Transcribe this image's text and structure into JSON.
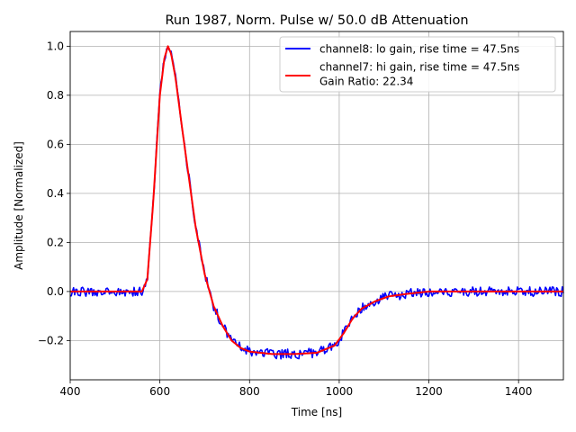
{
  "chart_data": {
    "type": "line",
    "title": "Run 1987, Norm. Pulse w/ 50.0 dB Attenuation",
    "xlabel": "Time [ns]",
    "ylabel": "Amplitude [Normalized]",
    "xlim": [
      400,
      1500
    ],
    "ylim": [
      -0.36,
      1.06
    ],
    "xticks": [
      400,
      600,
      800,
      1000,
      1200,
      1400
    ],
    "yticks": [
      -0.2,
      0.0,
      0.2,
      0.4,
      0.6,
      0.8,
      1.0
    ],
    "xtick_labels": [
      "400",
      "600",
      "800",
      "1000",
      "1200",
      "1400"
    ],
    "ytick_labels": [
      "−0.2",
      "0.0",
      "0.2",
      "0.4",
      "0.6",
      "0.8",
      "1.0"
    ],
    "grid": true,
    "legend_position": "top-right",
    "legend_extra_text": "Gain Ratio: 22.34",
    "series": [
      {
        "name": "channel8: lo gain, rise time = 47.5ns",
        "color": "#0000ff",
        "noise_amplitude": 0.02,
        "x": [
          400,
          560,
          572,
          585,
          600,
          610,
          618,
          625,
          635,
          650,
          665,
          680,
          700,
          720,
          740,
          760,
          780,
          800,
          850,
          900,
          950,
          990,
          1010,
          1030,
          1050,
          1080,
          1110,
          1150,
          1200,
          1300,
          1400,
          1500
        ],
        "y": [
          0.0,
          0.0,
          0.05,
          0.36,
          0.8,
          0.95,
          1.0,
          0.97,
          0.87,
          0.66,
          0.46,
          0.26,
          0.07,
          -0.06,
          -0.14,
          -0.2,
          -0.23,
          -0.245,
          -0.255,
          -0.255,
          -0.25,
          -0.22,
          -0.17,
          -0.11,
          -0.07,
          -0.04,
          -0.02,
          -0.01,
          0.0,
          0.0,
          0.0,
          0.0
        ]
      },
      {
        "name": "channel7: hi gain, rise time = 47.5ns",
        "color": "#ff0000",
        "noise_amplitude": 0.0,
        "x": [
          400,
          560,
          572,
          585,
          600,
          610,
          618,
          625,
          635,
          650,
          665,
          680,
          700,
          720,
          740,
          760,
          780,
          800,
          850,
          900,
          950,
          990,
          1010,
          1030,
          1050,
          1080,
          1110,
          1150,
          1200,
          1300,
          1400,
          1500
        ],
        "y": [
          0.0,
          0.0,
          0.05,
          0.36,
          0.8,
          0.95,
          1.0,
          0.97,
          0.87,
          0.66,
          0.46,
          0.26,
          0.07,
          -0.06,
          -0.14,
          -0.2,
          -0.23,
          -0.245,
          -0.255,
          -0.255,
          -0.25,
          -0.22,
          -0.17,
          -0.11,
          -0.07,
          -0.04,
          -0.02,
          -0.01,
          0.0,
          0.0,
          0.0,
          0.0
        ]
      }
    ]
  }
}
